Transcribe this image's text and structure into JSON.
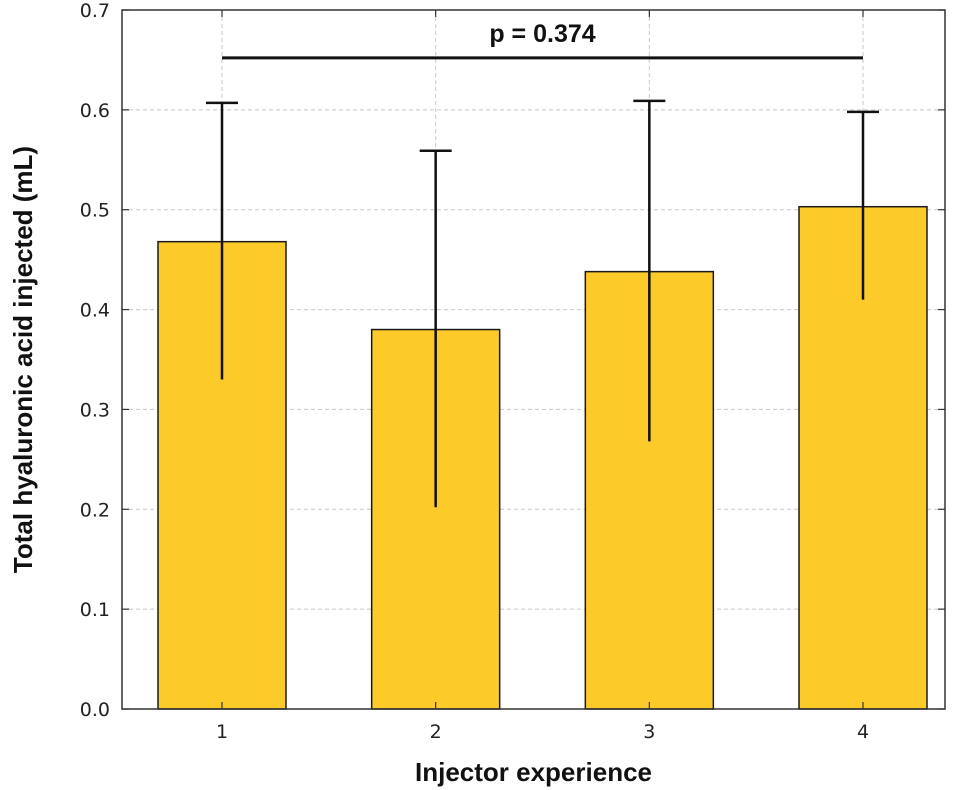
{
  "chart_data": {
    "type": "bar",
    "categories": [
      "1",
      "2",
      "3",
      "4"
    ],
    "values": [
      0.468,
      0.38,
      0.438,
      0.503
    ],
    "error_low": [
      0.33,
      0.202,
      0.268,
      0.41
    ],
    "error_high": [
      0.607,
      0.559,
      0.609,
      0.598
    ],
    "xlabel": "Injector experience",
    "ylabel": "Total hyaluronic acid injected (mL)",
    "ylim": [
      0,
      0.7
    ],
    "yticks": [
      0.0,
      0.1,
      0.2,
      0.3,
      0.4,
      0.5,
      0.6,
      0.7
    ],
    "ytick_labels": [
      "0.0",
      "0.1",
      "0.2",
      "0.3",
      "0.4",
      "0.5",
      "0.6",
      "0.7"
    ],
    "grid": true,
    "bar_color": "#FCCB2A",
    "annotations": [
      {
        "text": "p = 0.374",
        "from_category": "1",
        "to_category": "4",
        "y": 0.652
      }
    ]
  }
}
